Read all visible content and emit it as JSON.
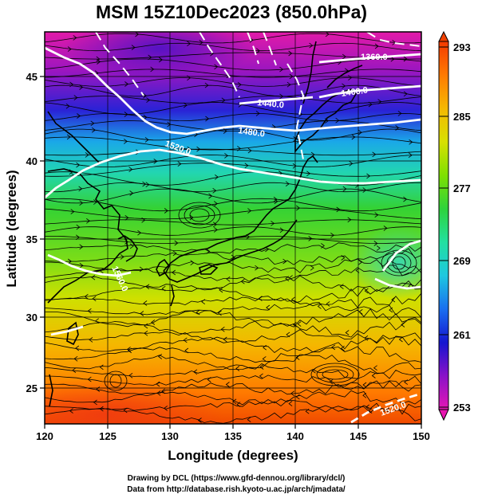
{
  "title": "MSM 15Z10Dec2023 (850.0hPa)",
  "xlabel": "Longitude (degrees)",
  "ylabel": "Latitude  (degrees)",
  "credit_line1": "Drawing by DCL (https://www.gfd-dennou.org/library/dcl/)",
  "credit_line2": "Data from http://database.rish.kyoto-u.ac.jp/arch/jmadata/",
  "colorbar": {
    "min": 253,
    "max": 293,
    "ticks": [
      "293",
      "285",
      "277",
      "269",
      "261",
      "253"
    ],
    "colors": [
      "#f33a00",
      "#ff7a00",
      "#f5b800",
      "#d8e000",
      "#7ee000",
      "#2ed33c",
      "#22e0a0",
      "#1ec8e0",
      "#1a6ff0",
      "#1515d0",
      "#8a12c8",
      "#e516b4"
    ]
  },
  "map": {
    "x_ticks": [
      "120",
      "125",
      "130",
      "135",
      "140",
      "145",
      "150"
    ],
    "y_ticks": [
      "25",
      "30",
      "35",
      "40",
      "45"
    ],
    "xlim": [
      120,
      150
    ],
    "ylim": [
      22.5,
      47.5
    ],
    "contour_labels": [
      "1360.0",
      "1400.0",
      "1440.0",
      "1480.0",
      "1520.0",
      "1560.0",
      "1520.0"
    ]
  }
}
